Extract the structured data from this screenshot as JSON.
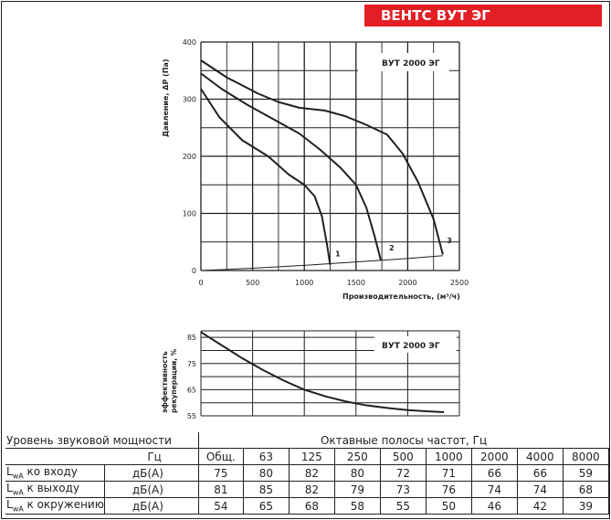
{
  "brand": "ВЕНТС ВУТ ЭГ",
  "chart_data": [
    {
      "type": "line",
      "model_label": "ВУТ 2000 ЭГ",
      "xlabel": "Производительность, (м³/ч)",
      "ylabel": "Давление, ΔP (Па)",
      "xlim": [
        0,
        2500
      ],
      "ylim": [
        0,
        400
      ],
      "xticks": [
        0,
        500,
        1000,
        1500,
        2000,
        2500
      ],
      "yticks": [
        0,
        100,
        200,
        300,
        400
      ],
      "series": [
        {
          "name": "1",
          "points": [
            [
              0,
              318
            ],
            [
              180,
              268
            ],
            [
              400,
              228
            ],
            [
              650,
              200
            ],
            [
              850,
              168
            ],
            [
              1000,
              150
            ],
            [
              1100,
              130
            ],
            [
              1170,
              95
            ],
            [
              1220,
              45
            ],
            [
              1250,
              10
            ]
          ]
        },
        {
          "name": "2",
          "points": [
            [
              0,
              345
            ],
            [
              200,
              318
            ],
            [
              450,
              290
            ],
            [
              700,
              265
            ],
            [
              950,
              240
            ],
            [
              1150,
              212
            ],
            [
              1350,
              180
            ],
            [
              1500,
              150
            ],
            [
              1600,
              110
            ],
            [
              1680,
              60
            ],
            [
              1740,
              18
            ]
          ]
        },
        {
          "name": "3",
          "points": [
            [
              0,
              368
            ],
            [
              250,
              338
            ],
            [
              550,
              310
            ],
            [
              750,
              295
            ],
            [
              950,
              285
            ],
            [
              1200,
              280
            ],
            [
              1400,
              270
            ],
            [
              1600,
              255
            ],
            [
              1800,
              238
            ],
            [
              1950,
              205
            ],
            [
              2100,
              155
            ],
            [
              2250,
              90
            ],
            [
              2340,
              28
            ]
          ]
        },
        {
          "name": "system",
          "points": [
            [
              0,
              0
            ],
            [
              500,
              4
            ],
            [
              1000,
              9
            ],
            [
              1500,
              15
            ],
            [
              2000,
              21
            ],
            [
              2340,
              26
            ]
          ]
        }
      ],
      "curve_labels": [
        {
          "text": "1",
          "x": 1300,
          "y": 25
        },
        {
          "text": "2",
          "x": 1820,
          "y": 35
        },
        {
          "text": "3",
          "x": 2380,
          "y": 48
        }
      ]
    },
    {
      "type": "line",
      "model_label": "ВУТ 2000 ЭГ",
      "ylabel_lines": [
        "эффективность",
        "рекуперации, %"
      ],
      "ylim": [
        55,
        87.5
      ],
      "yticks": [
        55,
        65,
        75,
        85
      ],
      "xlim": [
        0,
        2500
      ],
      "series": [
        {
          "name": "efficiency",
          "points": [
            [
              0,
              87
            ],
            [
              200,
              82
            ],
            [
              400,
              77
            ],
            [
              600,
              72.5
            ],
            [
              800,
              68.5
            ],
            [
              1000,
              65
            ],
            [
              1200,
              62.5
            ],
            [
              1400,
              60.5
            ],
            [
              1600,
              59
            ],
            [
              1800,
              58
            ],
            [
              2000,
              57.2
            ],
            [
              2200,
              56.7
            ],
            [
              2350,
              56.4
            ]
          ]
        }
      ]
    }
  ],
  "noise_table": {
    "title": "Уровень звуковой мощности",
    "bands_title": "Октавные полосы частот, Гц",
    "hz_label": "Гц",
    "headers": [
      "Общ.",
      "63",
      "125",
      "250",
      "500",
      "1000",
      "2000",
      "4000",
      "8000"
    ],
    "rows": [
      {
        "label_main": "L",
        "label_sub": "wA",
        "label_rest": " ко входу",
        "unit": "дБ(А)",
        "values": [
          "75",
          "80",
          "82",
          "80",
          "72",
          "71",
          "66",
          "66",
          "59"
        ]
      },
      {
        "label_main": "L",
        "label_sub": "wA",
        "label_rest": " к выходу",
        "unit": "дБ(А)",
        "values": [
          "81",
          "85",
          "82",
          "79",
          "73",
          "76",
          "74",
          "74",
          "68"
        ]
      },
      {
        "label_main": "L",
        "label_sub": "wA",
        "label_rest": " к окружению",
        "unit": "дБ(А)",
        "values": [
          "54",
          "65",
          "68",
          "58",
          "55",
          "50",
          "46",
          "42",
          "39"
        ]
      }
    ]
  }
}
